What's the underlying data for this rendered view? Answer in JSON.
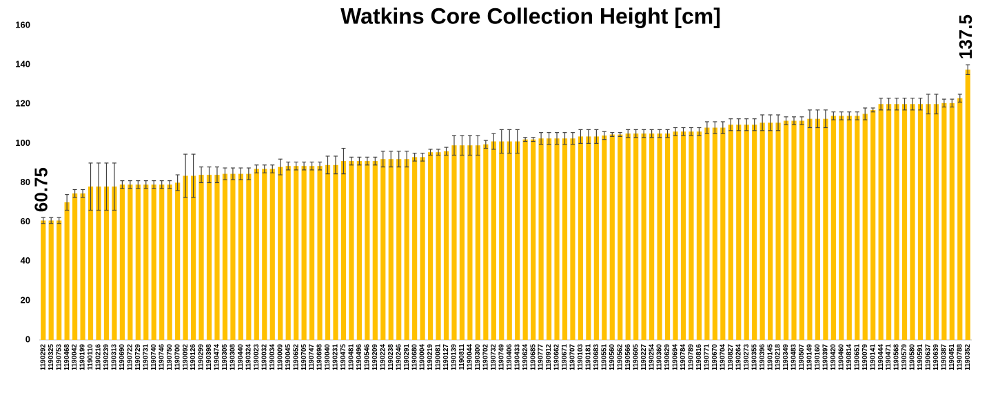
{
  "chart_data": {
    "type": "bar",
    "title": "Watkins Core Collection Height [cm]",
    "categories": [
      "1190292",
      "1190325",
      "1190753",
      "1190468",
      "1190042",
      "1190199",
      "1190110",
      "1190216",
      "1190239",
      "1190313",
      "1190690",
      "1190722",
      "1190729",
      "1190731",
      "1190740",
      "1190746",
      "1190750",
      "1190700",
      "1190092",
      "1190126",
      "1190299",
      "1190398",
      "1190474",
      "1190305",
      "1190308",
      "1190440",
      "1190324",
      "1190023",
      "1190032",
      "1190034",
      "1190009",
      "1190045",
      "1190652",
      "1190705",
      "1190747",
      "1190698",
      "1190040",
      "1190231",
      "1190475",
      "1190481",
      "1190496",
      "1190546",
      "1190209",
      "1190224",
      "1190238",
      "1190246",
      "1190291",
      "1190680",
      "1190004",
      "1190219",
      "1190081",
      "1190127",
      "1190139",
      "1190811",
      "1190044",
      "1190300",
      "1190702",
      "1190732",
      "1190749",
      "1190406",
      "1190433",
      "1190624",
      "1190685",
      "1190777",
      "1190912",
      "1190662",
      "1190671",
      "1190707",
      "1190103",
      "1190181",
      "1190683",
      "1190551",
      "1190560",
      "1190562",
      "1190566",
      "1190605",
      "1190227",
      "1190254",
      "1190360",
      "1190629",
      "1190694",
      "1190784",
      "1190789",
      "1190816",
      "1190771",
      "1190670",
      "1190704",
      "1190827",
      "1190264",
      "1190273",
      "1190355",
      "1190396",
      "1190145",
      "1190218",
      "1190349",
      "1190483",
      "1190507",
      "1190149",
      "1190160",
      "1190397",
      "1190420",
      "1190460",
      "1190814",
      "1190651",
      "1190079",
      "1190141",
      "1190444",
      "1190471",
      "1190568",
      "1190579",
      "1190580",
      "1190591",
      "1190637",
      "1190639",
      "1190387",
      "1190451",
      "1190788",
      "1190352"
    ],
    "values": [
      60.75,
      60.75,
      60.75,
      70,
      74.5,
      74.5,
      78,
      78,
      78,
      78,
      79,
      79,
      79,
      79,
      79,
      79,
      79,
      80,
      83.5,
      83.5,
      84,
      84,
      84,
      84.5,
      84.5,
      84.5,
      84.5,
      87,
      87,
      87,
      88,
      88.5,
      88.5,
      88.5,
      88.5,
      88.5,
      89,
      89,
      91,
      91,
      91,
      91,
      91,
      92,
      92,
      92,
      92,
      93,
      93,
      95.5,
      95.5,
      96,
      99,
      99,
      99,
      99,
      99.5,
      101,
      101,
      101,
      101,
      102,
      102,
      102.5,
      102.5,
      102.5,
      102.5,
      102.5,
      103.5,
      103.5,
      103.5,
      104,
      104.5,
      104.5,
      105,
      105,
      105,
      105,
      105,
      105,
      106,
      106,
      106,
      106,
      108,
      108,
      108,
      109.5,
      109.5,
      109.5,
      109.5,
      110.5,
      110.5,
      110.5,
      111.5,
      111.5,
      111.5,
      112.5,
      112.5,
      112.5,
      114,
      114,
      114,
      114,
      115,
      117,
      120,
      120,
      120,
      120,
      120,
      120,
      120,
      120,
      120.5,
      120.5,
      123,
      137.5
    ],
    "errors": [
      1.5,
      1.5,
      1.5,
      4,
      2,
      2,
      12,
      12,
      12,
      12,
      2,
      2,
      2,
      2,
      2,
      2,
      2,
      4,
      11,
      11,
      4,
      4,
      4,
      3,
      3,
      3,
      3,
      2,
      2,
      2,
      4,
      2,
      2,
      2,
      2,
      2,
      4.5,
      4.5,
      6.5,
      2,
      2,
      2,
      2,
      4,
      4,
      4,
      4,
      2,
      2,
      1.5,
      1.5,
      2,
      5,
      5,
      5,
      5,
      2,
      4,
      6,
      6,
      6,
      1,
      1,
      3,
      3,
      3,
      3,
      3,
      3.5,
      3.5,
      3.5,
      2,
      1,
      1,
      2,
      2,
      2,
      2,
      2,
      2,
      2,
      2,
      2,
      2,
      3,
      3,
      3,
      3,
      3,
      3,
      3,
      4,
      4,
      4,
      2,
      2,
      2,
      4.5,
      4.5,
      4.5,
      2,
      2,
      2,
      2,
      3,
      1,
      3,
      3,
      3,
      3,
      3,
      3,
      5,
      5,
      2,
      2,
      2,
      2.5
    ],
    "color": "#FFC000",
    "error_color": "#404040",
    "ylim": [
      0,
      160
    ],
    "yticks": [
      0,
      20,
      40,
      60,
      80,
      100,
      120,
      140,
      160
    ],
    "grid": false
  }
}
